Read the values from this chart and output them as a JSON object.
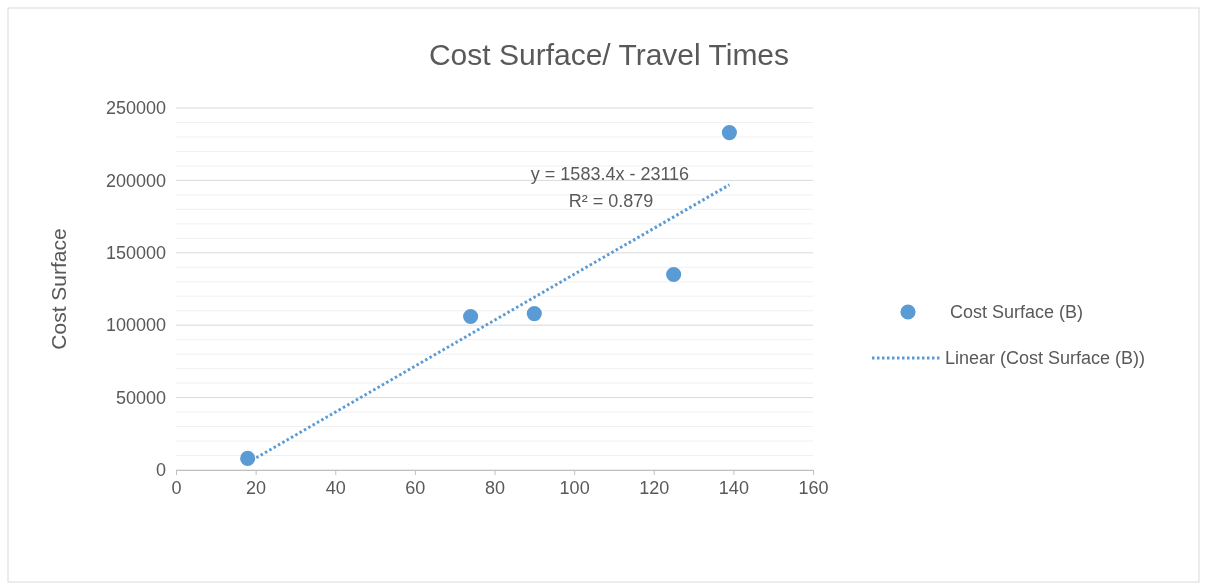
{
  "chart_data": {
    "type": "scatter",
    "title": "Cost Surface/ Travel Times",
    "ylabel": "Cost Surface",
    "xlim": [
      0,
      160
    ],
    "xticks": [
      0,
      20,
      40,
      60,
      80,
      100,
      120,
      140,
      160
    ],
    "ylim": [
      0,
      250000
    ],
    "yticks": [
      0,
      {
        "value": 10000,
        "label": null
      },
      {
        "value": 20000,
        "label": null
      },
      {
        "value": 30000,
        "label": null
      },
      {
        "value": 40000,
        "label": null
      },
      50000,
      {
        "value": 60000,
        "label": null
      },
      {
        "value": 70000,
        "label": null
      },
      {
        "value": 80000,
        "label": null
      },
      {
        "value": 90000,
        "label": null
      },
      100000,
      {
        "value": 110000,
        "label": null
      },
      {
        "value": 120000,
        "label": null
      },
      {
        "value": 130000,
        "label": null
      },
      {
        "value": 140000,
        "label": null
      },
      150000,
      {
        "value": 160000,
        "label": null
      },
      {
        "value": 170000,
        "label": null
      },
      {
        "value": 180000,
        "label": null
      },
      {
        "value": 190000,
        "label": null
      },
      200000,
      {
        "value": 210000,
        "label": null
      },
      {
        "value": 220000,
        "label": null
      },
      {
        "value": 230000,
        "label": null
      },
      {
        "value": 240000,
        "label": null
      },
      250000
    ],
    "grid": "y",
    "legend": "right",
    "series": [
      {
        "name": "Cost Surface (B)",
        "marker": "circle",
        "color": "#5b9bd5",
        "x": [
          18,
          74,
          90,
          125,
          139
        ],
        "values": [
          8000,
          106000,
          108000,
          135000,
          233000
        ]
      },
      {
        "name": "Linear (Cost Surface (B))",
        "type": "line",
        "line_style": "dotted",
        "color": "#5b9bd5",
        "x": [
          18,
          139
        ],
        "values": [
          5000,
          197000
        ]
      }
    ],
    "annotations": [
      "y = 1583.4x - 23116",
      "R² = 0.879"
    ]
  }
}
